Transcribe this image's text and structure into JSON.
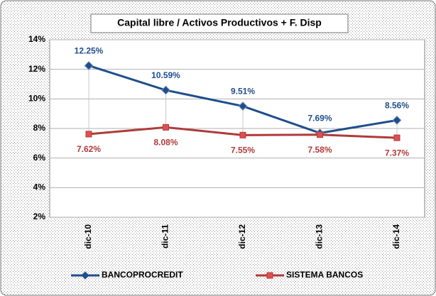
{
  "chart_data": {
    "type": "line",
    "title": "Capital libre / Activos Productivos + F. Disp",
    "categories": [
      "dic-10",
      "dic-11",
      "dic-12",
      "dic-13",
      "dic-14"
    ],
    "series": [
      {
        "name": "BANCOPROCREDIT",
        "color": "#1f4e8c",
        "values": [
          12.25,
          10.59,
          9.51,
          7.69,
          8.56
        ],
        "value_labels": [
          "12.25%",
          "10.59%",
          "9.51%",
          "7.69%",
          "8.56%"
        ]
      },
      {
        "name": "SISTEMA BANCOS",
        "color": "#b03a3a",
        "values": [
          7.62,
          8.08,
          7.55,
          7.58,
          7.37
        ],
        "value_labels": [
          "7.62%",
          "8.08%",
          "7.55%",
          "7.58%",
          "7.37%"
        ]
      }
    ],
    "ylim": [
      2,
      14
    ],
    "yticks": [
      {
        "value": 2,
        "label": "2%"
      },
      {
        "value": 4,
        "label": "4%"
      },
      {
        "value": 6,
        "label": "6%"
      },
      {
        "value": 8,
        "label": "8%"
      },
      {
        "value": 10,
        "label": "10%"
      },
      {
        "value": 12,
        "label": "12%"
      },
      {
        "value": 14,
        "label": "14%"
      }
    ],
    "grid": true,
    "legend": "bottom"
  }
}
